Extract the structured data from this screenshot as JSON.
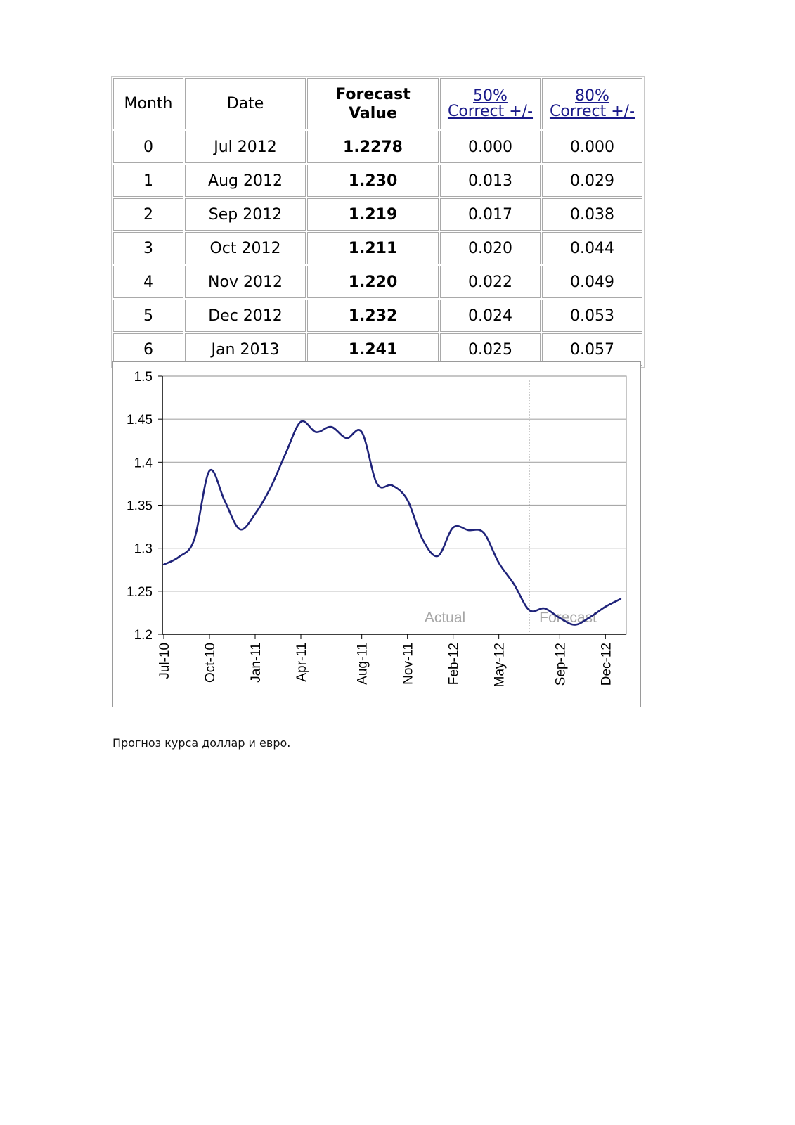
{
  "table": {
    "headers": {
      "month": "Month",
      "date": "Date",
      "forecast_line1": "Forecast",
      "forecast_line2": "Value",
      "p50_line1": "50%",
      "p50_line2": "Correct +/-",
      "p80_line1": "80%",
      "p80_line2": "Correct +/-"
    },
    "rows": [
      {
        "month": "0",
        "date": "Jul 2012",
        "value": "1.2278",
        "p50": "0.000",
        "p80": "0.000"
      },
      {
        "month": "1",
        "date": "Aug 2012",
        "value": "1.230",
        "p50": "0.013",
        "p80": "0.029"
      },
      {
        "month": "2",
        "date": "Sep 2012",
        "value": "1.219",
        "p50": "0.017",
        "p80": "0.038"
      },
      {
        "month": "3",
        "date": "Oct 2012",
        "value": "1.211",
        "p50": "0.020",
        "p80": "0.044"
      },
      {
        "month": "4",
        "date": "Nov 2012",
        "value": "1.220",
        "p50": "0.022",
        "p80": "0.049"
      },
      {
        "month": "5",
        "date": "Dec 2012",
        "value": "1.232",
        "p50": "0.024",
        "p80": "0.053"
      },
      {
        "month": "6",
        "date": "Jan 2013",
        "value": "1.241",
        "p50": "0.025",
        "p80": "0.057"
      }
    ]
  },
  "chart_data": {
    "type": "line",
    "title": "",
    "xlabel": "",
    "ylabel": "",
    "ylim": [
      1.2,
      1.5
    ],
    "yticks": [
      "1.5",
      "1.45",
      "1.4",
      "1.35",
      "1.3",
      "1.25",
      "1.2"
    ],
    "xticks": [
      "Jul-10",
      "Oct-10",
      "Jan-11",
      "Apr-11",
      "Aug-11",
      "Nov-11",
      "Feb-12",
      "May-12",
      "Sep-12",
      "Dec-12"
    ],
    "grid": "horizontal",
    "line_color": "#1f237a",
    "annotations": {
      "actual": "Actual",
      "forecast": "Forecast"
    },
    "forecast_start": "Jul-12",
    "series": [
      {
        "x": [
          "Jul-10",
          "Aug-10",
          "Sep-10",
          "Oct-10",
          "Nov-10",
          "Dec-10",
          "Jan-11",
          "Feb-11",
          "Mar-11",
          "Apr-11",
          "May-11",
          "Jun-11",
          "Jul-11",
          "Aug-11",
          "Sep-11",
          "Oct-11",
          "Nov-11",
          "Dec-11",
          "Jan-12",
          "Feb-12",
          "Mar-12",
          "Apr-12",
          "May-12",
          "Jun-12",
          "Jul-12",
          "Aug-12",
          "Sep-12",
          "Oct-12",
          "Nov-12",
          "Dec-12",
          "Jan-13"
        ],
        "values": [
          1.281,
          1.29,
          1.31,
          1.39,
          1.355,
          1.322,
          1.34,
          1.37,
          1.41,
          1.447,
          1.435,
          1.441,
          1.428,
          1.435,
          1.375,
          1.373,
          1.356,
          1.31,
          1.291,
          1.324,
          1.321,
          1.318,
          1.283,
          1.258,
          1.228,
          1.23,
          1.219,
          1.211,
          1.22,
          1.232,
          1.241
        ]
      }
    ]
  },
  "caption": "Прогноз курса доллар и евро."
}
